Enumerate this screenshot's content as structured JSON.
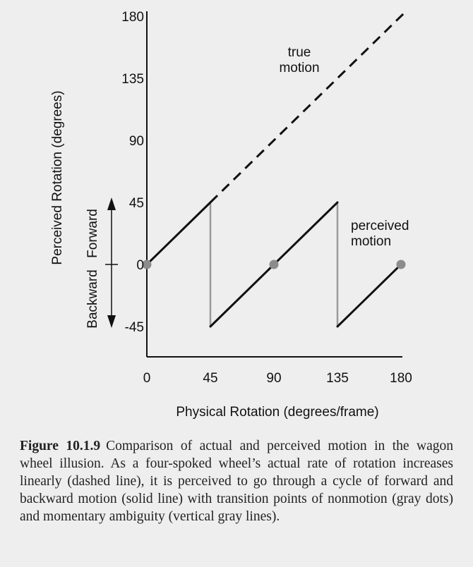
{
  "chart_data": {
    "type": "line",
    "xlabel": "Physical Rotation (degrees/frame)",
    "ylabel": "Perceived Rotation (degrees)",
    "x_ticks": [
      0,
      45,
      90,
      135,
      180
    ],
    "y_ticks": [
      180,
      135,
      90,
      45,
      0,
      -45
    ],
    "xlim": [
      0,
      180
    ],
    "ylim": [
      -45,
      180
    ],
    "grid": false,
    "direction_labels": {
      "forward": "Forward",
      "backward": "Backward"
    },
    "series": [
      {
        "name": "true motion",
        "style": "dashed",
        "color": "#111111",
        "x": [
          45,
          180
        ],
        "y": [
          45,
          180
        ]
      },
      {
        "name": "perceived motion",
        "style": "solid",
        "color": "#111111",
        "segments": [
          {
            "x": [
              0,
              45
            ],
            "y": [
              0,
              45
            ]
          },
          {
            "x": [
              45,
              135
            ],
            "y": [
              -45,
              45
            ]
          },
          {
            "x": [
              135,
              180
            ],
            "y": [
              -45,
              0
            ]
          }
        ]
      }
    ],
    "ambiguity_lines": [
      {
        "x": 45,
        "y": [
          -45,
          45
        ]
      },
      {
        "x": 135,
        "y": [
          -45,
          45
        ]
      }
    ],
    "nonmotion_points": [
      {
        "x": 0,
        "y": 0
      },
      {
        "x": 90,
        "y": 0
      },
      {
        "x": 180,
        "y": 0
      }
    ],
    "colors": {
      "curve": "#111111",
      "gray": "#9a9a9a",
      "dot": "#8c8c8c"
    }
  },
  "caption": {
    "label": "Figure 10.1.9",
    "text": "Comparison of actual and perceived motion in the wagon wheel illusion. As a four-spoked wheel’s actual rate of rotation increases linearly (dashed line), it is perceived to go through a cycle of forward and backward motion (solid line) with transition points of nonmotion (gray dots) and momentary ambiguity (vertical gray lines)."
  }
}
